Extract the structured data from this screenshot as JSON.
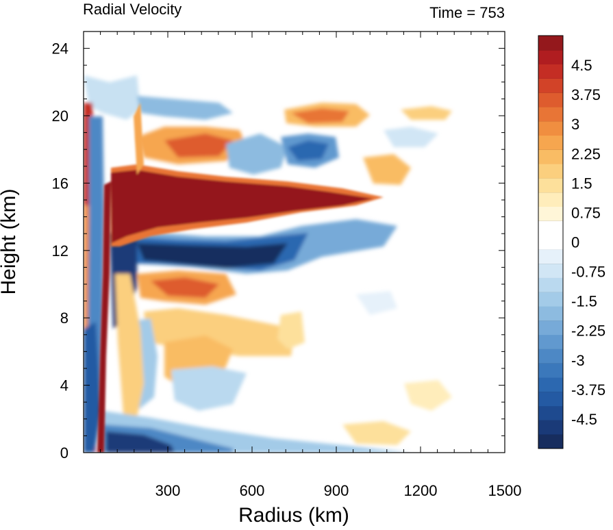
{
  "chart_data": {
    "type": "heatmap",
    "title_left": "Radial Velocity",
    "title_right": "Time = 753",
    "xlabel": "Radius (km)",
    "ylabel": "Height (km)",
    "xlim": [
      0,
      1500
    ],
    "ylim": [
      0,
      25
    ],
    "x_ticks": [
      "300",
      "600",
      "900",
      "1200",
      "1500"
    ],
    "y_ticks": [
      "0",
      "4",
      "8",
      "12",
      "16",
      "20",
      "24"
    ],
    "colorbar": {
      "labels": [
        "4.5",
        "3.75",
        "3",
        "2.25",
        "1.5",
        "0.75",
        "0",
        "-0.75",
        "-1.5",
        "-2.25",
        "-3",
        "-3.75",
        "-4.5"
      ],
      "levels": [
        -5.25,
        -4.875,
        -4.5,
        -4.125,
        -3.75,
        -3.375,
        -3,
        -2.625,
        -2.25,
        -1.875,
        -1.5,
        -1.125,
        -0.75,
        -0.375,
        0,
        0.375,
        0.75,
        1.125,
        1.5,
        1.875,
        2.25,
        2.625,
        3,
        3.375,
        3.75,
        4.125,
        4.5,
        4.875,
        5.25
      ],
      "colors": [
        "#172d5e",
        "#1a3a78",
        "#1e4a8f",
        "#245aa3",
        "#2c68b0",
        "#3b78bb",
        "#4d88c5",
        "#6199cf",
        "#77aad8",
        "#8dbbe0",
        "#a3cbe8",
        "#bad9ef",
        "#d1e6f5",
        "#e6f1fa",
        "#ffffff",
        "#ffffff",
        "#fff6d8",
        "#ffedbb",
        "#fde09b",
        "#fbcf7e",
        "#f9bc64",
        "#f6a64f",
        "#f08e40",
        "#e87536",
        "#de5c2e",
        "#d24328",
        "#c42d24",
        "#b01d20",
        "#94181c"
      ]
    },
    "features": [
      {
        "name": "outflow jet",
        "sign": "positive",
        "x_range": [
          80,
          1050
        ],
        "z_range": [
          13.5,
          17
        ]
      },
      {
        "name": "inflow layer aloft",
        "sign": "negative",
        "x_range": [
          150,
          800
        ],
        "z_range": [
          10,
          13.5
        ]
      },
      {
        "name": "boundary-layer inflow",
        "sign": "negative",
        "x_range": [
          80,
          600
        ],
        "z_range": [
          0,
          2
        ]
      },
      {
        "name": "upper outflow",
        "sign": "positive",
        "x_range": [
          180,
          900
        ],
        "z_range": [
          17.5,
          21
        ]
      }
    ]
  }
}
